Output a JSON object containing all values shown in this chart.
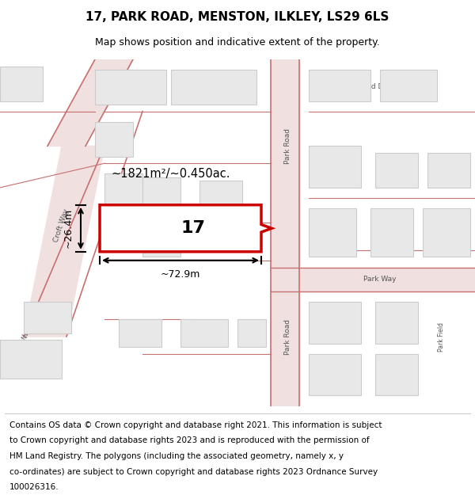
{
  "title": "17, PARK ROAD, MENSTON, ILKLEY, LS29 6LS",
  "subtitle": "Map shows position and indicative extent of the property.",
  "footer_lines": [
    "Contains OS data © Crown copyright and database right 2021. This information is subject",
    "to Crown copyright and database rights 2023 and is reproduced with the permission of",
    "HM Land Registry. The polygons (including the associated geometry, namely x, y",
    "co-ordinates) are subject to Crown copyright and database rights 2023 Ordnance Survey",
    "100026316."
  ],
  "area_label": "~1821m²/~0.450ac.",
  "width_label": "~72.9m",
  "height_label": "~26.4m",
  "property_number": "17",
  "map_bg": "#f5f5f0",
  "highlight_color": "#cc0000",
  "road_line_color": "#c87070",
  "road_fill_color": "#f0e0e0",
  "building_color": "#e8e8e8",
  "building_ec": "#cccccc",
  "title_fontsize": 11,
  "subtitle_fontsize": 9,
  "footer_fontsize": 7.5
}
